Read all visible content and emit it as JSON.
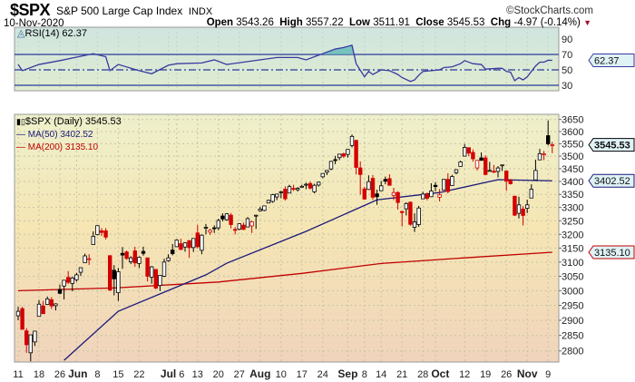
{
  "header": {
    "symbol": "$SPX",
    "name": "S&P 500 Large Cap Index",
    "exchange": "INDX",
    "date": "10-Nov-2020",
    "brand": "©StockCharts.com",
    "open_label": "Open",
    "open": "3543.26",
    "high_label": "High",
    "high": "3557.22",
    "low_label": "Low",
    "low": "3511.91",
    "close_label": "Close",
    "close": "3545.53",
    "chg_label": "Chg",
    "chg": "-4.97 (-0.14%)",
    "chg_direction": "down"
  },
  "rsi_panel": {
    "legend": "RSI(14) 62.37",
    "value_label": "62.37",
    "ticks": [
      30,
      50,
      70,
      90
    ]
  },
  "price_panel": {
    "legend_price": "$SPX (Daily) 3545.53",
    "legend_ma50": "MA(50) 3402.52",
    "legend_ma200": "MA(200) 3135.10",
    "label_close": "3545.53",
    "label_ma50": "3402.52",
    "label_ma200": "3135.10"
  },
  "colors": {
    "up": "#000000",
    "down": "#d40000",
    "ma50": "#1a1a7a",
    "ma200": "#c00000",
    "rsi": "#3a3aa0",
    "rsi_fill": "#5fb8b8"
  },
  "chart_data": {
    "type": "candlestick",
    "scale": "log",
    "ylim": [
      2750,
      3680
    ],
    "grid": true,
    "yticks": [
      2800,
      2850,
      2900,
      2950,
      3000,
      3050,
      3100,
      3150,
      3200,
      3250,
      3300,
      3350,
      3400,
      3450,
      3500,
      3550,
      3600,
      3650
    ],
    "xticks": [
      [
        "2020-05-11",
        "11",
        false
      ],
      [
        "2020-05-18",
        "18",
        false
      ],
      [
        "2020-05-26",
        "26",
        false
      ],
      [
        "2020-06-01",
        "Jun",
        true
      ],
      [
        "2020-06-08",
        "8",
        false
      ],
      [
        "2020-06-15",
        "15",
        false
      ],
      [
        "2020-06-22",
        "22",
        false
      ],
      [
        "2020-07-01",
        "Jul",
        true
      ],
      [
        "2020-07-06",
        "6",
        false
      ],
      [
        "2020-07-13",
        "13",
        false
      ],
      [
        "2020-07-20",
        "20",
        false
      ],
      [
        "2020-07-27",
        "27",
        false
      ],
      [
        "2020-08-03",
        "Aug",
        true
      ],
      [
        "2020-08-10",
        "10",
        false
      ],
      [
        "2020-08-17",
        "17",
        false
      ],
      [
        "2020-08-24",
        "24",
        false
      ],
      [
        "2020-09-01",
        "Sep",
        true
      ],
      [
        "2020-09-08",
        "8",
        false
      ],
      [
        "2020-09-14",
        "14",
        false
      ],
      [
        "2020-09-21",
        "21",
        false
      ],
      [
        "2020-09-28",
        "28",
        false
      ],
      [
        "2020-10-01",
        "Oct",
        true
      ],
      [
        "2020-10-12",
        "12",
        false
      ],
      [
        "2020-10-19",
        "19",
        false
      ],
      [
        "2020-10-26",
        "26",
        false
      ],
      [
        "2020-11-02",
        "Nov",
        true
      ],
      [
        "2020-11-09",
        "9",
        false
      ]
    ],
    "ohlc": [
      [
        "2020-05-11",
        2915,
        2945,
        2900,
        2930
      ],
      [
        "2020-05-12",
        2939,
        2945,
        2869,
        2870
      ],
      [
        "2020-05-13",
        2865,
        2874,
        2794,
        2820
      ],
      [
        "2020-05-14",
        2794,
        2852,
        2767,
        2852
      ],
      [
        "2020-05-15",
        2829,
        2865,
        2816,
        2864
      ],
      [
        "2020-05-18",
        2913,
        2968,
        2913,
        2954
      ],
      [
        "2020-05-19",
        2948,
        2965,
        2921,
        2922
      ],
      [
        "2020-05-20",
        2953,
        2980,
        2953,
        2972
      ],
      [
        "2020-05-21",
        2969,
        2978,
        2938,
        2948
      ],
      [
        "2020-05-22",
        2949,
        2957,
        2933,
        2955
      ],
      [
        "2020-05-26",
        3004,
        3021,
        2988,
        2991
      ],
      [
        "2020-05-27",
        3016,
        3036,
        2970,
        3036
      ],
      [
        "2020-05-28",
        3046,
        3068,
        3023,
        3029
      ],
      [
        "2020-05-29",
        3025,
        3049,
        2998,
        3044
      ],
      [
        "2020-06-01",
        3038,
        3062,
        3031,
        3055
      ],
      [
        "2020-06-02",
        3064,
        3081,
        3051,
        3080
      ],
      [
        "2020-06-03",
        3098,
        3130,
        3098,
        3122
      ],
      [
        "2020-06-04",
        3111,
        3128,
        3090,
        3112
      ],
      [
        "2020-06-05",
        3163,
        3211,
        3163,
        3193
      ],
      [
        "2020-06-08",
        3199,
        3233,
        3196,
        3232
      ],
      [
        "2020-06-09",
        3213,
        3223,
        3194,
        3207
      ],
      [
        "2020-06-10",
        3213,
        3223,
        3181,
        3190
      ],
      [
        "2020-06-11",
        3123,
        3123,
        2999,
        3002
      ],
      [
        "2020-06-12",
        3071,
        3089,
        2984,
        3041
      ],
      [
        "2020-06-15",
        2993,
        3079,
        2965,
        3066
      ],
      [
        "2020-06-16",
        3131,
        3154,
        3076,
        3125
      ],
      [
        "2020-06-17",
        3136,
        3141,
        3108,
        3113
      ],
      [
        "2020-06-18",
        3101,
        3121,
        3093,
        3115
      ],
      [
        "2020-06-19",
        3140,
        3155,
        3083,
        3097
      ],
      [
        "2020-06-22",
        3095,
        3120,
        3079,
        3117
      ],
      [
        "2020-06-23",
        3138,
        3155,
        3123,
        3131
      ],
      [
        "2020-06-24",
        3115,
        3115,
        3032,
        3050
      ],
      [
        "2020-06-25",
        3047,
        3086,
        3024,
        3083
      ],
      [
        "2020-06-26",
        3074,
        3074,
        3005,
        3009
      ],
      [
        "2020-06-29",
        3018,
        3053,
        2999,
        3053
      ],
      [
        "2020-06-30",
        3050,
        3112,
        3047,
        3100
      ],
      [
        "2020-07-01",
        3105,
        3128,
        3101,
        3115
      ],
      [
        "2020-07-02",
        3143,
        3165,
        3124,
        3130
      ],
      [
        "2020-07-06",
        3155,
        3182,
        3155,
        3179
      ],
      [
        "2020-07-07",
        3166,
        3184,
        3143,
        3145
      ],
      [
        "2020-07-08",
        3154,
        3171,
        3137,
        3169
      ],
      [
        "2020-07-09",
        3177,
        3179,
        3115,
        3152
      ],
      [
        "2020-07-10",
        3152,
        3186,
        3136,
        3185
      ],
      [
        "2020-07-13",
        3205,
        3235,
        3149,
        3155
      ],
      [
        "2020-07-14",
        3142,
        3200,
        3128,
        3197
      ],
      [
        "2020-07-15",
        3225,
        3238,
        3200,
        3226
      ],
      [
        "2020-07-16",
        3208,
        3220,
        3198,
        3215
      ],
      [
        "2020-07-17",
        3224,
        3233,
        3205,
        3224
      ],
      [
        "2020-07-20",
        3224,
        3258,
        3215,
        3251
      ],
      [
        "2020-07-21",
        3268,
        3278,
        3248,
        3257
      ],
      [
        "2020-07-22",
        3254,
        3279,
        3250,
        3276
      ],
      [
        "2020-07-23",
        3271,
        3279,
        3222,
        3236
      ],
      [
        "2020-07-24",
        3218,
        3227,
        3200,
        3215
      ],
      [
        "2020-07-27",
        3219,
        3241,
        3215,
        3239
      ],
      [
        "2020-07-28",
        3234,
        3243,
        3216,
        3218
      ],
      [
        "2020-07-29",
        3227,
        3264,
        3227,
        3258
      ],
      [
        "2020-07-30",
        3231,
        3250,
        3205,
        3246
      ],
      [
        "2020-07-31",
        3270,
        3272,
        3220,
        3271
      ],
      [
        "2020-08-03",
        3288,
        3302,
        3284,
        3294
      ],
      [
        "2020-08-04",
        3289,
        3306,
        3286,
        3306
      ],
      [
        "2020-08-05",
        3317,
        3330,
        3317,
        3327
      ],
      [
        "2020-08-06",
        3323,
        3352,
        3318,
        3349
      ],
      [
        "2020-08-07",
        3340,
        3352,
        3328,
        3351
      ],
      [
        "2020-08-10",
        3357,
        3364,
        3335,
        3360
      ],
      [
        "2020-08-11",
        3370,
        3381,
        3326,
        3333
      ],
      [
        "2020-08-12",
        3355,
        3387,
        3355,
        3380
      ],
      [
        "2020-08-13",
        3373,
        3387,
        3363,
        3373
      ],
      [
        "2020-08-14",
        3368,
        3378,
        3361,
        3373
      ],
      [
        "2020-08-17",
        3380,
        3387,
        3379,
        3381
      ],
      [
        "2020-08-18",
        3387,
        3395,
        3370,
        3389
      ],
      [
        "2020-08-19",
        3392,
        3399,
        3369,
        3374
      ],
      [
        "2020-08-20",
        3360,
        3391,
        3354,
        3385
      ],
      [
        "2020-08-21",
        3386,
        3399,
        3380,
        3397
      ],
      [
        "2020-08-24",
        3418,
        3432,
        3413,
        3431
      ],
      [
        "2020-08-25",
        3436,
        3445,
        3425,
        3443
      ],
      [
        "2020-08-26",
        3449,
        3481,
        3444,
        3479
      ],
      [
        "2020-08-27",
        3486,
        3501,
        3468,
        3484
      ],
      [
        "2020-08-28",
        3494,
        3509,
        3484,
        3508
      ],
      [
        "2020-08-31",
        3509,
        3514,
        3493,
        3500
      ],
      [
        "2020-09-01",
        3507,
        3528,
        3494,
        3527
      ],
      [
        "2020-09-02",
        3543,
        3588,
        3535,
        3580
      ],
      [
        "2020-09-03",
        3564,
        3564,
        3427,
        3455
      ],
      [
        "2020-09-04",
        3453,
        3479,
        3349,
        3427
      ],
      [
        "2020-09-08",
        3371,
        3379,
        3330,
        3332
      ],
      [
        "2020-09-09",
        3369,
        3424,
        3367,
        3399
      ],
      [
        "2020-09-10",
        3412,
        3425,
        3329,
        3339
      ],
      [
        "2020-09-11",
        3352,
        3368,
        3310,
        3341
      ],
      [
        "2020-09-14",
        3364,
        3402,
        3363,
        3383
      ],
      [
        "2020-09-15",
        3408,
        3419,
        3389,
        3401
      ],
      [
        "2020-09-16",
        3411,
        3428,
        3384,
        3385
      ],
      [
        "2020-09-17",
        3346,
        3375,
        3328,
        3357
      ],
      [
        "2020-09-18",
        3357,
        3362,
        3292,
        3319
      ],
      [
        "2020-09-21",
        3285,
        3286,
        3229,
        3281
      ],
      [
        "2020-09-22",
        3295,
        3320,
        3270,
        3315
      ],
      [
        "2020-09-23",
        3320,
        3323,
        3232,
        3237
      ],
      [
        "2020-09-24",
        3226,
        3278,
        3209,
        3246
      ],
      [
        "2020-09-25",
        3236,
        3306,
        3228,
        3298
      ],
      [
        "2020-09-28",
        3333,
        3360,
        3332,
        3351
      ],
      [
        "2020-09-29",
        3350,
        3357,
        3327,
        3335
      ],
      [
        "2020-09-30",
        3341,
        3393,
        3340,
        3363
      ],
      [
        "2020-10-01",
        3385,
        3397,
        3362,
        3380
      ],
      [
        "2020-10-02",
        3339,
        3370,
        3323,
        3348
      ],
      [
        "2020-10-05",
        3367,
        3409,
        3367,
        3408
      ],
      [
        "2020-10-06",
        3408,
        3432,
        3354,
        3361
      ],
      [
        "2020-10-07",
        3384,
        3426,
        3384,
        3419
      ],
      [
        "2020-10-08",
        3434,
        3447,
        3428,
        3446
      ],
      [
        "2020-10-09",
        3459,
        3482,
        3459,
        3477
      ],
      [
        "2020-10-12",
        3500,
        3549,
        3500,
        3535
      ],
      [
        "2020-10-13",
        3534,
        3534,
        3500,
        3512
      ],
      [
        "2020-10-14",
        3515,
        3527,
        3478,
        3489
      ],
      [
        "2020-10-15",
        3453,
        3484,
        3443,
        3483
      ],
      [
        "2020-10-16",
        3493,
        3515,
        3483,
        3483
      ],
      [
        "2020-10-19",
        3493,
        3503,
        3424,
        3427
      ],
      [
        "2020-10-20",
        3440,
        3477,
        3440,
        3443
      ],
      [
        "2020-10-21",
        3440,
        3465,
        3433,
        3436
      ],
      [
        "2020-10-22",
        3439,
        3460,
        3416,
        3453
      ],
      [
        "2020-10-23",
        3464,
        3466,
        3441,
        3465
      ],
      [
        "2020-10-26",
        3441,
        3441,
        3364,
        3401
      ],
      [
        "2020-10-27",
        3404,
        3410,
        3388,
        3391
      ],
      [
        "2020-10-28",
        3343,
        3342,
        3268,
        3271
      ],
      [
        "2020-10-29",
        3278,
        3341,
        3259,
        3310
      ],
      [
        "2020-10-30",
        3294,
        3305,
        3233,
        3270
      ],
      [
        "2020-11-02",
        3297,
        3330,
        3279,
        3310
      ],
      [
        "2020-11-03",
        3336,
        3389,
        3336,
        3370
      ],
      [
        "2020-11-04",
        3406,
        3486,
        3405,
        3443
      ],
      [
        "2020-11-05",
        3485,
        3529,
        3485,
        3510
      ],
      [
        "2020-11-06",
        3508,
        3521,
        3484,
        3509
      ],
      [
        "2020-11-09",
        3583,
        3646,
        3543,
        3550
      ],
      [
        "2020-11-10",
        3543.26,
        3557.22,
        3511.91,
        3545.53
      ]
    ],
    "ma50": [
      [
        "2020-05-27",
        2770
      ],
      [
        "2020-06-15",
        2930
      ],
      [
        "2020-07-15",
        3055
      ],
      [
        "2020-07-22",
        3096
      ],
      [
        "2020-08-18",
        3211
      ],
      [
        "2020-09-11",
        3329
      ],
      [
        "2020-10-02",
        3357
      ],
      [
        "2020-10-22",
        3407
      ],
      [
        "2020-11-10",
        3402.52
      ]
    ],
    "ma200": [
      [
        "2020-05-11",
        3000
      ],
      [
        "2020-06-15",
        3010
      ],
      [
        "2020-07-20",
        3030
      ],
      [
        "2020-08-17",
        3060
      ],
      [
        "2020-09-14",
        3095
      ],
      [
        "2020-10-12",
        3115
      ],
      [
        "2020-11-10",
        3135.1
      ]
    ],
    "rsi": [
      [
        "2020-05-11",
        57
      ],
      [
        "2020-05-12",
        49
      ],
      [
        "2020-05-18",
        57
      ],
      [
        "2020-05-26",
        62
      ],
      [
        "2020-06-05",
        71
      ],
      [
        "2020-06-10",
        67
      ],
      [
        "2020-06-11",
        49
      ],
      [
        "2020-06-15",
        57
      ],
      [
        "2020-06-22",
        49
      ],
      [
        "2020-06-25",
        45
      ],
      [
        "2020-07-01",
        56
      ],
      [
        "2020-07-06",
        58
      ],
      [
        "2020-07-14",
        59
      ],
      [
        "2020-07-17",
        63
      ],
      [
        "2020-07-22",
        57
      ],
      [
        "2020-07-28",
        60
      ],
      [
        "2020-08-07",
        66
      ],
      [
        "2020-08-14",
        66
      ],
      [
        "2020-08-18",
        63
      ],
      [
        "2020-08-24",
        71
      ],
      [
        "2020-08-27",
        77
      ],
      [
        "2020-08-31",
        79
      ],
      [
        "2020-09-02",
        82
      ],
      [
        "2020-09-03",
        58
      ],
      [
        "2020-09-08",
        41
      ],
      [
        "2020-09-09",
        48
      ],
      [
        "2020-09-10",
        44
      ],
      [
        "2020-09-14",
        50
      ],
      [
        "2020-09-16",
        49
      ],
      [
        "2020-09-18",
        44
      ],
      [
        "2020-09-21",
        40
      ],
      [
        "2020-09-23",
        35
      ],
      [
        "2020-09-24",
        37
      ],
      [
        "2020-09-25",
        43
      ],
      [
        "2020-09-28",
        48
      ],
      [
        "2020-10-02",
        50
      ],
      [
        "2020-10-05",
        53
      ],
      [
        "2020-10-07",
        54
      ],
      [
        "2020-10-09",
        58
      ],
      [
        "2020-10-12",
        62
      ],
      [
        "2020-10-14",
        58
      ],
      [
        "2020-10-16",
        57
      ],
      [
        "2020-10-19",
        51
      ],
      [
        "2020-10-22",
        52
      ],
      [
        "2020-10-23",
        52
      ],
      [
        "2020-10-26",
        48
      ],
      [
        "2020-10-27",
        47
      ],
      [
        "2020-10-28",
        36
      ],
      [
        "2020-10-29",
        40
      ],
      [
        "2020-10-30",
        37
      ],
      [
        "2020-11-02",
        41
      ],
      [
        "2020-11-03",
        48
      ],
      [
        "2020-11-04",
        55
      ],
      [
        "2020-11-05",
        60
      ],
      [
        "2020-11-06",
        60
      ],
      [
        "2020-11-09",
        62.5
      ],
      [
        "2020-11-10",
        62.37
      ]
    ]
  }
}
